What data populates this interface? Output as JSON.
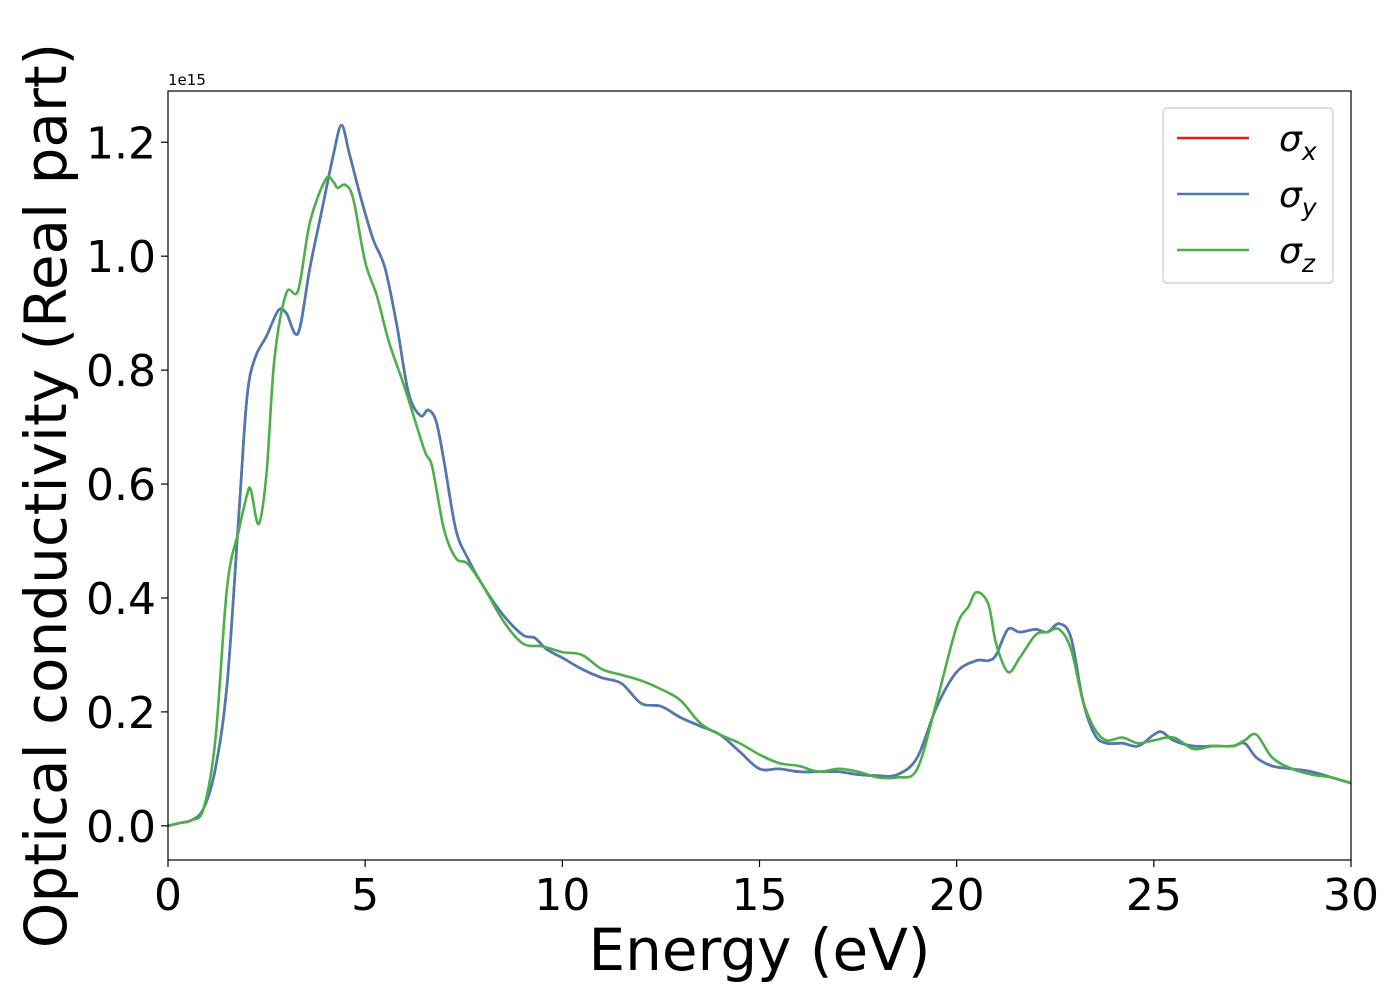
{
  "chart_data": {
    "type": "line",
    "xlabel": "Energy (eV)",
    "ylabel": "Optical conductivity (Real part)",
    "y_offset_label": "1e15",
    "xlim": [
      0,
      30
    ],
    "ylim": [
      -0.06,
      1.29
    ],
    "x_ticks": [
      0,
      5,
      10,
      15,
      20,
      25,
      30
    ],
    "x_tick_labels": [
      "0",
      "5",
      "10",
      "15",
      "20",
      "25",
      "30"
    ],
    "y_ticks": [
      0.0,
      0.2,
      0.4,
      0.6,
      0.8,
      1.0,
      1.2
    ],
    "y_tick_labels": [
      "0.0",
      "0.2",
      "0.4",
      "0.6",
      "0.8",
      "1.0",
      "1.2"
    ],
    "grid": false,
    "legend_position": "upper right",
    "series": [
      {
        "name": "σ",
        "subscript": "x",
        "color": "#e41a1c",
        "x": [
          0,
          0.3,
          0.6,
          0.9,
          1.2,
          1.5,
          1.8,
          2.0,
          2.2,
          2.5,
          2.8,
          3.0,
          3.3,
          3.6,
          3.9,
          4.2,
          4.4,
          4.6,
          4.9,
          5.2,
          5.5,
          5.8,
          6.1,
          6.4,
          6.6,
          6.8,
          7.0,
          7.3,
          7.6,
          8.0,
          8.5,
          9.0,
          9.3,
          9.6,
          10.0,
          10.5,
          11.0,
          11.5,
          12.0,
          12.5,
          13.0,
          13.5,
          14.0,
          14.5,
          15.0,
          15.5,
          16.0,
          16.5,
          17.0,
          17.5,
          18.0,
          18.5,
          19.0,
          19.5,
          20.0,
          20.5,
          20.8,
          21.0,
          21.3,
          21.6,
          22.0,
          22.3,
          22.6,
          22.9,
          23.2,
          23.5,
          23.8,
          24.2,
          24.6,
          25.0,
          25.2,
          25.5,
          26.0,
          26.5,
          27.0,
          27.3,
          27.6,
          28.0,
          28.5,
          29.0,
          29.5,
          30.0
        ],
        "y": [
          0.0,
          0.005,
          0.01,
          0.03,
          0.1,
          0.25,
          0.55,
          0.75,
          0.82,
          0.86,
          0.905,
          0.9,
          0.865,
          0.98,
          1.08,
          1.18,
          1.23,
          1.18,
          1.1,
          1.03,
          0.98,
          0.88,
          0.76,
          0.72,
          0.73,
          0.71,
          0.64,
          0.52,
          0.47,
          0.42,
          0.37,
          0.335,
          0.33,
          0.31,
          0.295,
          0.275,
          0.26,
          0.25,
          0.215,
          0.21,
          0.19,
          0.175,
          0.16,
          0.13,
          0.1,
          0.1,
          0.095,
          0.095,
          0.095,
          0.09,
          0.088,
          0.09,
          0.12,
          0.21,
          0.27,
          0.29,
          0.29,
          0.3,
          0.345,
          0.34,
          0.345,
          0.34,
          0.355,
          0.33,
          0.22,
          0.16,
          0.145,
          0.145,
          0.14,
          0.16,
          0.165,
          0.15,
          0.14,
          0.14,
          0.14,
          0.145,
          0.12,
          0.105,
          0.1,
          0.095,
          0.085,
          0.075
        ]
      },
      {
        "name": "σ",
        "subscript": "y",
        "color": "#4a7bb5",
        "x": [
          0,
          0.3,
          0.6,
          0.9,
          1.2,
          1.5,
          1.8,
          2.0,
          2.2,
          2.5,
          2.8,
          3.0,
          3.3,
          3.6,
          3.9,
          4.2,
          4.4,
          4.6,
          4.9,
          5.2,
          5.5,
          5.8,
          6.1,
          6.4,
          6.6,
          6.8,
          7.0,
          7.3,
          7.6,
          8.0,
          8.5,
          9.0,
          9.3,
          9.6,
          10.0,
          10.5,
          11.0,
          11.5,
          12.0,
          12.5,
          13.0,
          13.5,
          14.0,
          14.5,
          15.0,
          15.5,
          16.0,
          16.5,
          17.0,
          17.5,
          18.0,
          18.5,
          19.0,
          19.5,
          20.0,
          20.5,
          20.8,
          21.0,
          21.3,
          21.6,
          22.0,
          22.3,
          22.6,
          22.9,
          23.2,
          23.5,
          23.8,
          24.2,
          24.6,
          25.0,
          25.2,
          25.5,
          26.0,
          26.5,
          27.0,
          27.3,
          27.6,
          28.0,
          28.5,
          29.0,
          29.5,
          30.0
        ],
        "y": [
          0.0,
          0.005,
          0.01,
          0.03,
          0.1,
          0.25,
          0.55,
          0.75,
          0.82,
          0.86,
          0.905,
          0.9,
          0.865,
          0.98,
          1.08,
          1.18,
          1.23,
          1.18,
          1.1,
          1.03,
          0.98,
          0.88,
          0.76,
          0.72,
          0.73,
          0.71,
          0.64,
          0.52,
          0.47,
          0.42,
          0.37,
          0.335,
          0.33,
          0.31,
          0.295,
          0.275,
          0.26,
          0.25,
          0.215,
          0.21,
          0.19,
          0.175,
          0.16,
          0.13,
          0.1,
          0.1,
          0.095,
          0.095,
          0.095,
          0.09,
          0.088,
          0.09,
          0.12,
          0.21,
          0.27,
          0.29,
          0.29,
          0.3,
          0.345,
          0.34,
          0.345,
          0.34,
          0.355,
          0.33,
          0.22,
          0.16,
          0.145,
          0.145,
          0.14,
          0.16,
          0.165,
          0.15,
          0.14,
          0.14,
          0.14,
          0.145,
          0.12,
          0.105,
          0.1,
          0.095,
          0.085,
          0.075
        ]
      },
      {
        "name": "σ",
        "subscript": "z",
        "color": "#4daf4a",
        "x": [
          0,
          0.3,
          0.6,
          0.9,
          1.2,
          1.5,
          1.8,
          2.0,
          2.1,
          2.3,
          2.5,
          2.7,
          3.0,
          3.3,
          3.6,
          4.0,
          4.2,
          4.3,
          4.5,
          4.7,
          5.0,
          5.3,
          5.6,
          6.0,
          6.5,
          6.7,
          7.0,
          7.3,
          7.6,
          8.0,
          8.5,
          9.0,
          9.5,
          10.0,
          10.5,
          11.0,
          11.5,
          12.0,
          12.5,
          13.0,
          13.5,
          14.0,
          14.5,
          15.0,
          15.5,
          16.0,
          16.5,
          17.0,
          17.5,
          18.0,
          18.5,
          19.0,
          19.5,
          20.0,
          20.3,
          20.5,
          20.8,
          21.0,
          21.3,
          21.6,
          22.0,
          22.3,
          22.6,
          22.9,
          23.2,
          23.5,
          23.8,
          24.2,
          24.6,
          25.0,
          25.5,
          26.0,
          26.5,
          27.0,
          27.3,
          27.6,
          28.0,
          28.5,
          29.0,
          29.5,
          30.0
        ],
        "y": [
          0.0,
          0.005,
          0.01,
          0.03,
          0.15,
          0.42,
          0.52,
          0.58,
          0.59,
          0.53,
          0.62,
          0.82,
          0.935,
          0.94,
          1.06,
          1.135,
          1.13,
          1.12,
          1.125,
          1.1,
          0.99,
          0.93,
          0.85,
          0.77,
          0.66,
          0.63,
          0.52,
          0.47,
          0.46,
          0.42,
          0.36,
          0.32,
          0.315,
          0.305,
          0.3,
          0.275,
          0.265,
          0.255,
          0.24,
          0.22,
          0.18,
          0.16,
          0.145,
          0.125,
          0.11,
          0.105,
          0.095,
          0.1,
          0.095,
          0.085,
          0.085,
          0.1,
          0.22,
          0.35,
          0.385,
          0.41,
          0.39,
          0.32,
          0.27,
          0.295,
          0.335,
          0.34,
          0.345,
          0.31,
          0.22,
          0.17,
          0.15,
          0.155,
          0.145,
          0.15,
          0.155,
          0.135,
          0.14,
          0.14,
          0.15,
          0.16,
          0.12,
          0.1,
          0.09,
          0.085,
          0.075
        ]
      }
    ]
  }
}
